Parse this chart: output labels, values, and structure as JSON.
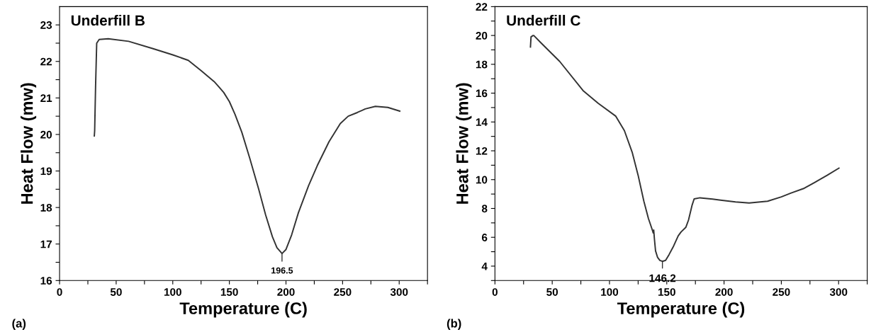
{
  "chart_data": [
    {
      "type": "line",
      "title": "Underfill B",
      "xlabel": "Temperature (C)",
      "ylabel": "Heat Flow (mw)",
      "annotations": [
        {
          "text": "196.5",
          "x": 196.5,
          "y": 16.74
        },
        "(a)"
      ],
      "series": [
        {
          "color": "#333333",
          "x": [
            30.7,
            31,
            31.8,
            32.8,
            35,
            43,
            61,
            82.6,
            100,
            113.7,
            125,
            136.5,
            140,
            145,
            150,
            155,
            161,
            168,
            175.9,
            182,
            188,
            192,
            196.5,
            200,
            205,
            211,
            220,
            227.7,
            238,
            248,
            255,
            263,
            270,
            279,
            290,
            300.5
          ],
          "values": [
            19.96,
            20.1,
            21.3,
            22.5,
            22.6,
            22.62,
            22.55,
            22.35,
            22.18,
            22.03,
            21.75,
            21.45,
            21.33,
            21.15,
            20.9,
            20.55,
            20.06,
            19.35,
            18.5,
            17.8,
            17.2,
            16.9,
            16.74,
            16.85,
            17.25,
            17.86,
            18.6,
            19.15,
            19.8,
            20.3,
            20.5,
            20.6,
            20.7,
            20.77,
            20.74,
            20.64
          ]
        }
      ],
      "xlim": [
        0,
        325
      ],
      "ylim": [
        16,
        23.5
      ],
      "xticks": [
        0,
        {
          "value": 25,
          "label": null
        },
        50,
        {
          "value": 75,
          "label": null
        },
        100,
        {
          "value": 125,
          "label": null
        },
        150,
        {
          "value": 175,
          "label": null
        },
        200,
        {
          "value": 225,
          "label": null
        },
        250,
        {
          "value": 275,
          "label": null
        },
        300,
        {
          "value": 325,
          "label": null
        }
      ],
      "yticks": [
        16,
        {
          "value": 16.5,
          "label": null
        },
        17,
        {
          "value": 17.5,
          "label": null
        },
        18,
        {
          "value": 18.5,
          "label": null
        },
        19,
        {
          "value": 19.5,
          "label": null
        },
        20,
        {
          "value": 20.5,
          "label": null
        },
        21,
        {
          "value": 21.5,
          "label": null
        },
        22,
        {
          "value": 22.5,
          "label": null
        },
        23
      ],
      "grid": false,
      "legend": false
    },
    {
      "type": "line",
      "title": "Underfill C",
      "xlabel": "Temperature (C)",
      "ylabel": "Heat Flow (mw)",
      "annotations": [
        {
          "text": "146.2",
          "x": 146.2,
          "y": 4.33
        },
        "(b)"
      ],
      "series": [
        {
          "color": "#333333",
          "x": [
            31,
            31.5,
            33.3,
            33.9,
            40,
            56.5,
            76.9,
            90,
            105.5,
            113,
            119.8,
            125,
            130,
            134,
            137,
            138.2,
            138.6,
            139.2,
            140.2,
            142,
            144,
            146.2,
            149,
            152,
            156,
            160,
            162.5,
            166.7,
            169,
            172,
            173.9,
            179,
            190,
            197,
            210,
            221.9,
            238,
            250,
            258.6,
            270,
            279,
            290,
            300.3
          ],
          "values": [
            19.2,
            19.9,
            20.0,
            20.0,
            19.5,
            18.2,
            16.18,
            15.3,
            14.4,
            13.4,
            11.9,
            10.3,
            8.5,
            7.3,
            6.6,
            6.3,
            6.5,
            5.9,
            5.06,
            4.6,
            4.4,
            4.33,
            4.4,
            4.8,
            5.4,
            6.1,
            6.37,
            6.7,
            7.2,
            8.2,
            8.66,
            8.74,
            8.65,
            8.58,
            8.45,
            8.38,
            8.5,
            8.8,
            9.07,
            9.4,
            9.8,
            10.3,
            10.8
          ]
        }
      ],
      "xlim": [
        0,
        325
      ],
      "ylim": [
        3,
        22
      ],
      "xticks": [
        0,
        {
          "value": 25,
          "label": null
        },
        50,
        {
          "value": 75,
          "label": null
        },
        100,
        {
          "value": 125,
          "label": null
        },
        150,
        {
          "value": 175,
          "label": null
        },
        200,
        {
          "value": 225,
          "label": null
        },
        250,
        {
          "value": 275,
          "label": null
        },
        300,
        {
          "value": 325,
          "label": null
        }
      ],
      "yticks": [
        {
          "value": 3,
          "label": null
        },
        4,
        {
          "value": 5,
          "label": null
        },
        6,
        {
          "value": 7,
          "label": null
        },
        8,
        {
          "value": 9,
          "label": null
        },
        10,
        {
          "value": 11,
          "label": null
        },
        12,
        {
          "value": 13,
          "label": null
        },
        14,
        {
          "value": 15,
          "label": null
        },
        16,
        {
          "value": 17,
          "label": null
        },
        18,
        {
          "value": 19,
          "label": null
        },
        20,
        {
          "value": 21,
          "label": null
        },
        22
      ],
      "grid": false,
      "legend": false
    }
  ]
}
